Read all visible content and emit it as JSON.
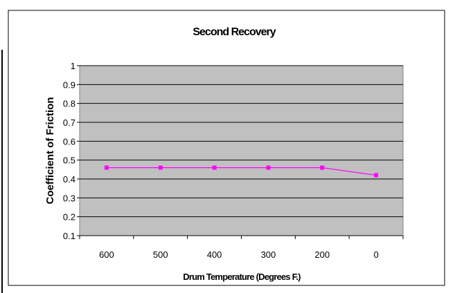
{
  "chart_data": {
    "type": "line",
    "title": "Second Recovery",
    "xlabel": "Drum Temperature (Degrees F.)",
    "ylabel": "Coefficient of Friction",
    "categories": [
      "600",
      "500",
      "400",
      "300",
      "200",
      "0"
    ],
    "series": [
      {
        "values": [
          0.46,
          0.46,
          0.46,
          0.46,
          0.46,
          0.42
        ],
        "color": "#ff00ff"
      }
    ],
    "ylim": [
      0.1,
      1
    ],
    "yticks": [
      "0.1",
      "0.2",
      "0.3",
      "0.4",
      "0.5",
      "0.6",
      "0.7",
      "0.8",
      "0.9",
      "1"
    ],
    "grid": true,
    "legend": "none",
    "plot_background": "#c0c0c0",
    "marker": "square"
  }
}
